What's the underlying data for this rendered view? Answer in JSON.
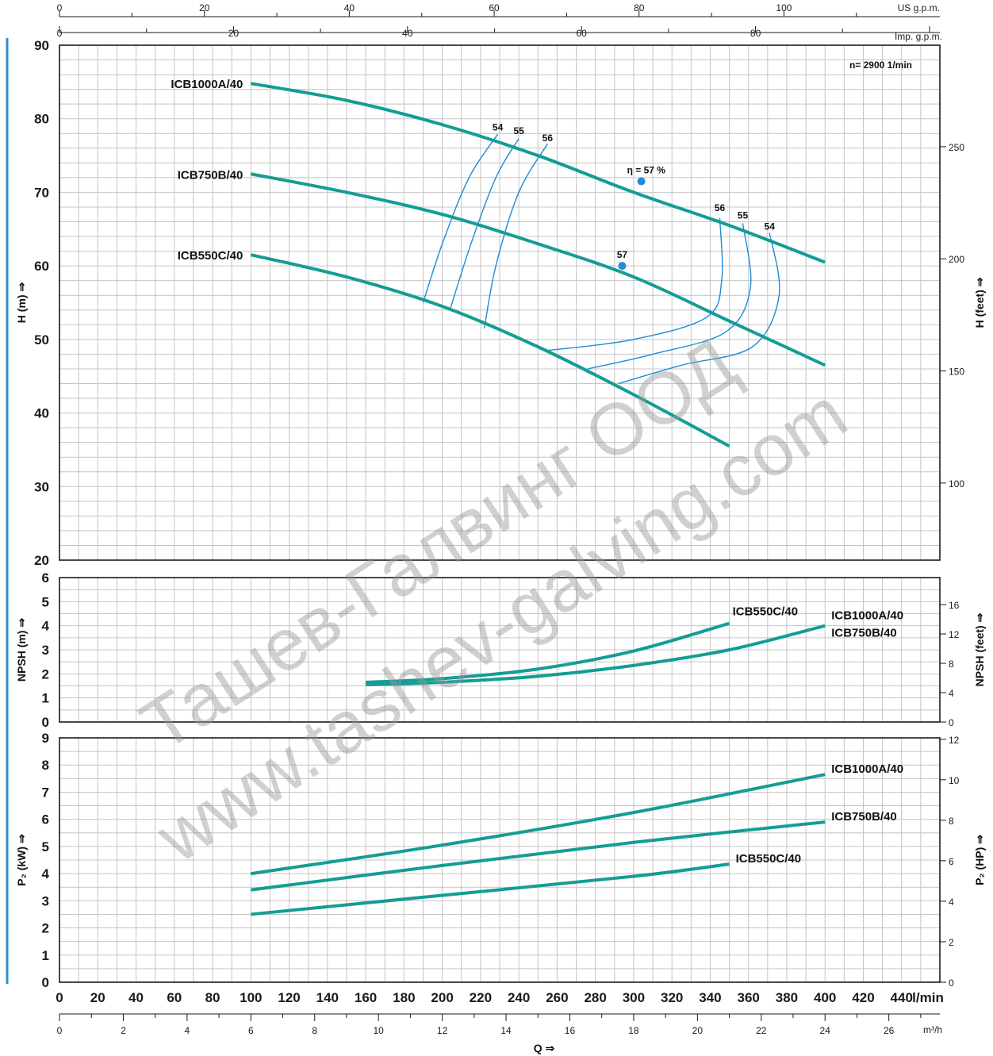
{
  "colors": {
    "curve": "#149d94",
    "eta": "#1e8cd6",
    "grid": "#c4c4c4",
    "frame": "#1a1a1a",
    "accent_bar": "#2b8fd1"
  },
  "top_axes": {
    "us": {
      "label": "US g.p.m.",
      "ticks": [
        0,
        20,
        40,
        60,
        80,
        100
      ]
    },
    "imp": {
      "label": "Imp. g.p.m.",
      "ticks": [
        0,
        20,
        40,
        60,
        80
      ]
    }
  },
  "bottom_axes": {
    "lmin": {
      "label": "l/min",
      "ticks": [
        0,
        20,
        40,
        60,
        80,
        100,
        120,
        140,
        160,
        180,
        200,
        220,
        240,
        260,
        280,
        300,
        320,
        340,
        360,
        380,
        400,
        420,
        440
      ]
    },
    "m3h": {
      "label": "m³/h",
      "ticks": [
        0,
        2,
        4,
        6,
        8,
        10,
        12,
        14,
        16,
        18,
        20,
        22,
        24,
        26
      ]
    },
    "q_label": "Q ⇒"
  },
  "watermarks": [
    "Ташев-Галвинг ООД",
    "www.tashev-galving.com"
  ],
  "chart_data": [
    {
      "type": "line",
      "title": "",
      "speed_note": "n= 2900 1/min",
      "xlabel": "",
      "ylabel": "H (m) ⇒",
      "y2label": "H (feet) ⇒",
      "xlim": [
        0,
        460
      ],
      "ylim": [
        20,
        90
      ],
      "yticks": [
        20,
        30,
        40,
        50,
        60,
        70,
        80,
        90
      ],
      "y2ticks": [
        100,
        150,
        200,
        250
      ],
      "series": [
        {
          "name": "ICB1000A/40",
          "x": [
            100,
            150,
            200,
            250,
            300,
            350,
            400
          ],
          "y": [
            84.8,
            82.5,
            79.2,
            75.0,
            70.0,
            65.5,
            60.5
          ]
        },
        {
          "name": "ICB750B/40",
          "x": [
            100,
            150,
            200,
            250,
            300,
            350,
            400
          ],
          "y": [
            72.5,
            70.0,
            67.0,
            63.0,
            58.5,
            52.5,
            46.5
          ]
        },
        {
          "name": "ICB550C/40",
          "x": [
            100,
            150,
            200,
            250,
            300,
            350
          ],
          "y": [
            61.5,
            58.5,
            54.5,
            49.0,
            42.5,
            35.5
          ]
        }
      ],
      "efficiency_points": [
        {
          "label": "η = 57 %",
          "x": 304,
          "y": 71.5
        },
        {
          "label": "57",
          "x": 294,
          "y": 60.0
        }
      ],
      "efficiency_labels": [
        {
          "label": "54",
          "x": 229,
          "y": 78.0
        },
        {
          "label": "55",
          "x": 240,
          "y": 77.5
        },
        {
          "label": "56",
          "x": 255,
          "y": 76.5
        },
        {
          "label": "56",
          "x": 345,
          "y": 67.0
        },
        {
          "label": "55",
          "x": 357,
          "y": 66.0
        },
        {
          "label": "54",
          "x": 371,
          "y": 64.5
        }
      ],
      "efficiency_contours": [
        {
          "label": "54",
          "x": [
            229,
            214,
            200,
            190
          ],
          "y": [
            77.9,
            72.0,
            63.0,
            55.0
          ]
        },
        {
          "label": "55",
          "x": [
            240,
            228,
            215,
            204
          ],
          "y": [
            77.3,
            72.0,
            63.0,
            54.0
          ]
        },
        {
          "label": "56",
          "x": [
            255,
            240,
            228,
            222
          ],
          "y": [
            76.6,
            70.0,
            60.0,
            51.5
          ]
        },
        {
          "label": "56",
          "x": [
            345,
            346,
            338,
            300,
            255
          ],
          "y": [
            66.5,
            58.0,
            53.0,
            50.0,
            48.5
          ]
        },
        {
          "label": "55",
          "x": [
            357,
            361,
            348,
            310,
            276
          ],
          "y": [
            65.8,
            57.0,
            51.0,
            48.0,
            46.0
          ]
        },
        {
          "label": "54",
          "x": [
            371,
            376,
            362,
            325,
            292
          ],
          "y": [
            64.5,
            56.0,
            49.0,
            46.5,
            44.0
          ]
        }
      ]
    },
    {
      "type": "line",
      "title": "",
      "xlabel": "",
      "ylabel": "NPSH (m) ⇒",
      "y2label": "NPSH (feet) ⇒",
      "xlim": [
        0,
        460
      ],
      "ylim": [
        0,
        6
      ],
      "yticks": [
        0,
        1,
        2,
        3,
        4,
        5,
        6
      ],
      "y2ticks": [
        0,
        4,
        8,
        12,
        16
      ],
      "series": [
        {
          "name": "ICB550C/40",
          "x": [
            160,
            200,
            250,
            300,
            350
          ],
          "y": [
            1.65,
            1.8,
            2.2,
            2.95,
            4.1
          ]
        },
        {
          "name": "ICB1000A/40 ICB750B/40",
          "x": [
            160,
            200,
            250,
            300,
            350,
            400
          ],
          "y": [
            1.55,
            1.65,
            1.9,
            2.35,
            3.0,
            4.0
          ]
        }
      ]
    },
    {
      "type": "line",
      "title": "",
      "xlabel": "",
      "ylabel": "P₂ (kW) ⇒",
      "y2label": "P₂ (HP) ⇒",
      "xlim": [
        0,
        460
      ],
      "ylim": [
        0,
        9
      ],
      "yticks": [
        0,
        1,
        2,
        3,
        4,
        5,
        6,
        7,
        8,
        9
      ],
      "y2ticks": [
        0,
        2,
        4,
        6,
        8,
        10,
        12
      ],
      "series": [
        {
          "name": "ICB1000A/40",
          "x": [
            100,
            200,
            300,
            400
          ],
          "y": [
            4.0,
            5.05,
            6.25,
            7.65
          ]
        },
        {
          "name": "ICB750B/40",
          "x": [
            100,
            200,
            300,
            400
          ],
          "y": [
            3.4,
            4.3,
            5.15,
            5.9
          ]
        },
        {
          "name": "ICB550C/40",
          "x": [
            100,
            200,
            300,
            350
          ],
          "y": [
            2.5,
            3.2,
            3.9,
            4.35
          ]
        }
      ]
    }
  ]
}
